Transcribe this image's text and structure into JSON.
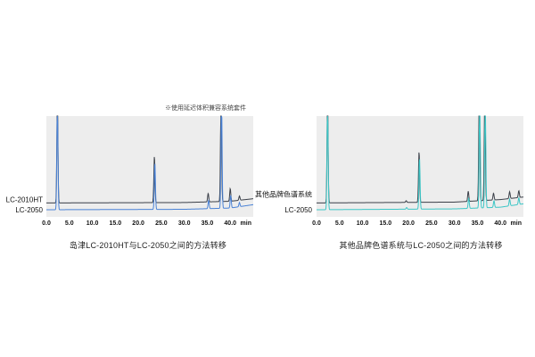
{
  "note": "※使用延迟体积兼容系统套件",
  "chart_data": [
    {
      "type": "line",
      "caption": "岛津LC-2010HT与LC-2050之间的方法转移",
      "xunit": "min",
      "xlim": [
        0,
        45
      ],
      "ticks": [
        "0.0",
        "5.0",
        "10.0",
        "15.0",
        "20.0",
        "25.0",
        "30.0",
        "35.0",
        "40.0"
      ],
      "series": [
        {
          "name": "LC-2010HT",
          "color": "#3a3f48",
          "baseline": 0.08,
          "drift": [
            [
              0,
              0
            ],
            [
              30,
              0.005
            ],
            [
              40,
              0.02
            ],
            [
              45,
              0.05
            ]
          ],
          "peaks": [
            [
              2.4,
              1.25
            ],
            [
              23.5,
              0.55
            ],
            [
              35.2,
              0.1
            ],
            [
              38.0,
              1.3
            ],
            [
              40.0,
              0.15
            ],
            [
              42.0,
              0.05
            ]
          ]
        },
        {
          "name": "LC-2050",
          "color": "#4a82d6",
          "baseline": 0.0,
          "drift": [
            [
              0,
              0
            ],
            [
              30,
              0.005
            ],
            [
              40,
              0.02
            ],
            [
              45,
              0.06
            ]
          ],
          "peaks": [
            [
              2.4,
              1.25
            ],
            [
              23.6,
              0.55
            ],
            [
              35.3,
              0.1
            ],
            [
              38.1,
              1.3
            ],
            [
              40.1,
              0.15
            ],
            [
              42.0,
              0.05
            ]
          ]
        }
      ]
    },
    {
      "type": "line",
      "caption": "其他品牌色谱系统与LC-2050之间的方法转移",
      "xunit": "min",
      "xlim": [
        0,
        45
      ],
      "ticks": [
        "0.0",
        "5.0",
        "10.0",
        "15.0",
        "20.0",
        "25.0",
        "30.0",
        "35.0",
        "40.0"
      ],
      "series": [
        {
          "name": "其他品牌色谱系统",
          "color": "#3a3f48",
          "baseline": 0.08,
          "drift": [
            [
              0,
              0
            ],
            [
              30,
              0.01
            ],
            [
              40,
              0.04
            ],
            [
              45,
              0.07
            ]
          ],
          "peaks": [
            [
              2.4,
              1.25
            ],
            [
              19.5,
              0.02
            ],
            [
              22.3,
              0.6
            ],
            [
              33.0,
              0.12
            ],
            [
              35.4,
              1.3
            ],
            [
              36.6,
              1.3
            ],
            [
              38.5,
              0.08
            ],
            [
              42.0,
              0.08
            ],
            [
              44.0,
              0.08
            ]
          ]
        },
        {
          "name": "LC-2050",
          "color": "#3cc6c6",
          "baseline": 0.0,
          "drift": [
            [
              0,
              0
            ],
            [
              30,
              0.01
            ],
            [
              40,
              0.03
            ],
            [
              45,
              0.07
            ]
          ],
          "peaks": [
            [
              2.4,
              1.25
            ],
            [
              19.6,
              0.02
            ],
            [
              22.4,
              0.6
            ],
            [
              33.1,
              0.12
            ],
            [
              35.5,
              1.3
            ],
            [
              36.7,
              1.3
            ],
            [
              38.6,
              0.08
            ],
            [
              42.0,
              0.08
            ],
            [
              44.0,
              0.08
            ]
          ]
        }
      ]
    }
  ]
}
